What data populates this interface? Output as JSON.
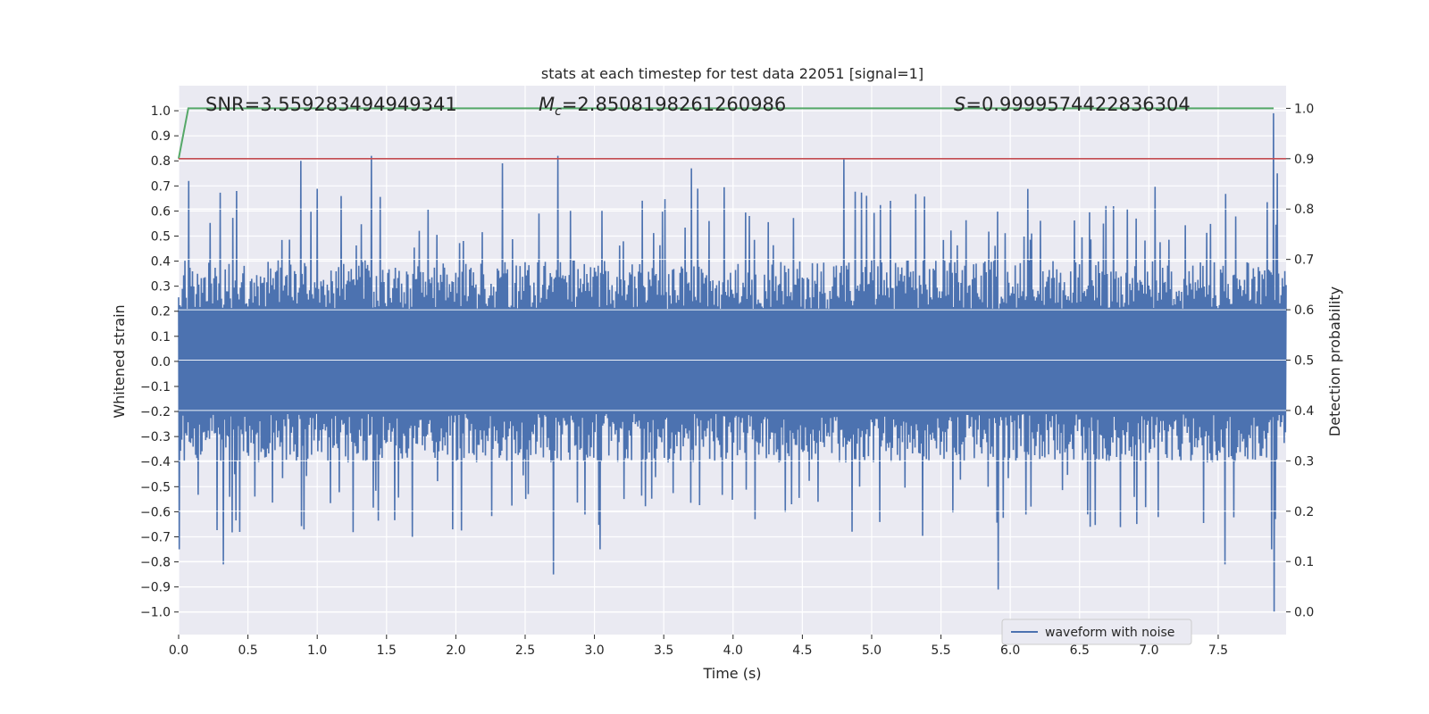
{
  "chart_data": {
    "type": "line",
    "title": "stats at each timestep for test data 22051 [signal=1]",
    "xlabel": "Time (s)",
    "ylabel": "Whitened strain",
    "y2label": "Detection probability",
    "xlim": [
      0.0,
      7.99
    ],
    "ylim": [
      -1.09,
      1.1
    ],
    "y2lim": [
      -0.045,
      1.045
    ],
    "grid": true,
    "x_ticks": [
      0.0,
      0.5,
      1.0,
      1.5,
      2.0,
      2.5,
      3.0,
      3.5,
      4.0,
      4.5,
      5.0,
      5.5,
      6.0,
      6.5,
      7.0,
      7.5
    ],
    "x_tick_labels": [
      "0.0",
      "0.5",
      "1.0",
      "1.5",
      "2.0",
      "2.5",
      "3.0",
      "3.5",
      "4.0",
      "4.5",
      "5.0",
      "5.5",
      "6.0",
      "6.5",
      "7.0",
      "7.5"
    ],
    "y_ticks": [
      1.0,
      0.9,
      0.8,
      0.7,
      0.6,
      0.5,
      0.4,
      0.3,
      0.2,
      0.1,
      0.0,
      -0.1,
      -0.2,
      -0.3,
      -0.4,
      -0.5,
      -0.6,
      -0.7,
      -0.8,
      -0.9,
      -1.0
    ],
    "y_tick_labels": [
      "1.0",
      "0.9",
      "0.8",
      "0.7",
      "0.6",
      "0.5",
      "0.4",
      "0.3",
      "0.2",
      "0.1",
      "0.0",
      "−0.1",
      "−0.2",
      "−0.3",
      "−0.4",
      "−0.5",
      "−0.6",
      "−0.7",
      "−0.8",
      "−0.9",
      "−1.0"
    ],
    "y2_ticks": [
      1.0,
      0.9,
      0.8,
      0.7,
      0.6,
      0.5,
      0.4,
      0.3,
      0.2,
      0.1,
      0.0
    ],
    "y2_tick_labels": [
      "1.0",
      "0.9",
      "0.8",
      "0.7",
      "0.6",
      "0.5",
      "0.4",
      "0.3",
      "0.2",
      "0.1",
      "0.0"
    ],
    "annotations": {
      "snr": "SNR=3.559283494949341",
      "mc_symbol": "M",
      "mc_subscript": "c",
      "mc_value": "=2.8508198261260986",
      "s_symbol": "S",
      "s_value": "=0.9999574422836304"
    },
    "legend": {
      "label": "waveform with noise",
      "location": "lower-right"
    },
    "series": [
      {
        "name": "waveform with noise",
        "color": "#4c72b0",
        "envelope_typical": 0.38,
        "samples_per_second": 220,
        "seed": 22051,
        "peaks": [
          {
            "x": 0.0,
            "value": -0.75
          },
          {
            "x": 0.07,
            "value": 0.72
          },
          {
            "x": 0.32,
            "value": -0.81
          },
          {
            "x": 0.88,
            "value": 0.8
          },
          {
            "x": 1.39,
            "value": 0.82
          },
          {
            "x": 1.69,
            "value": -0.7
          },
          {
            "x": 2.34,
            "value": 0.79
          },
          {
            "x": 2.7,
            "value": -0.85
          },
          {
            "x": 2.74,
            "value": 0.82
          },
          {
            "x": 3.04,
            "value": -0.75
          },
          {
            "x": 3.7,
            "value": 0.77
          },
          {
            "x": 4.8,
            "value": 0.81
          },
          {
            "x": 5.91,
            "value": -0.91
          },
          {
            "x": 7.55,
            "value": -0.81
          },
          {
            "x": 7.9,
            "value": 0.99
          },
          {
            "x": 7.9,
            "value": -1.0
          },
          {
            "x": 7.89,
            "value": -0.75
          },
          {
            "x": 7.93,
            "value": 0.75
          }
        ]
      },
      {
        "name": "detection probability",
        "axis": "right",
        "color": "#55a868",
        "x": [
          0.0,
          0.07,
          0.1,
          7.9
        ],
        "y": [
          0.9,
          1.0,
          1.0,
          1.0
        ]
      },
      {
        "name": "threshold",
        "axis": "right",
        "color": "#c44e52",
        "x": [
          0.0,
          7.99
        ],
        "y": [
          0.9,
          0.9
        ]
      }
    ]
  }
}
